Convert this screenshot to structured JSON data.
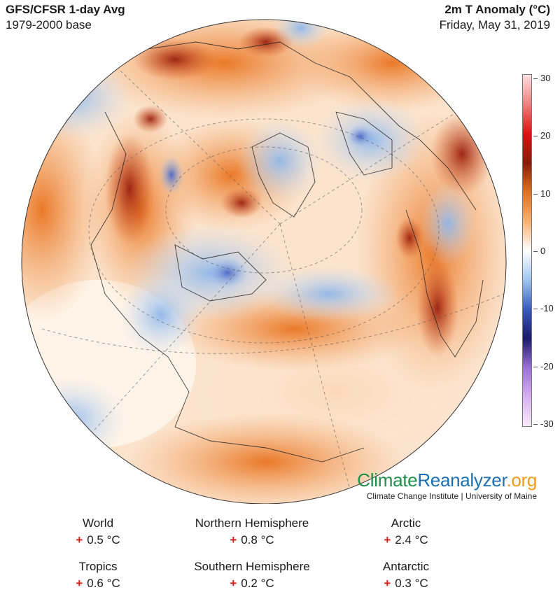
{
  "header": {
    "title": "GFS/CFSR 1-day Avg",
    "subtitle": "1979-2000 base",
    "variable": "2m T Anomaly (°C)",
    "date": "Friday, May 31, 2019"
  },
  "colorbar": {
    "labels": [
      "30",
      "20",
      "10",
      "0",
      "-10",
      "-20",
      "-30"
    ],
    "colors": [
      "#fde0e0",
      "#f08080",
      "#e01010",
      "#8a1a0a",
      "#e07020",
      "#f8b070",
      "#ffffff",
      "#9fc6f0",
      "#3a5bc0",
      "#1a1a6a",
      "#9a70d8",
      "#d8b0f0",
      "#f8eafa"
    ]
  },
  "brand": {
    "part1": "Climate",
    "part2": "Reanalyzer",
    "part3": ".org",
    "institute": "Climate Change Institute | University of Maine"
  },
  "stats": [
    {
      "name": "World",
      "sign": "+",
      "value": "0.5 °C"
    },
    {
      "name": "Northern Hemisphere",
      "sign": "+",
      "value": "0.8 °C"
    },
    {
      "name": "Arctic",
      "sign": "+",
      "value": "2.4 °C"
    },
    {
      "name": "Tropics",
      "sign": "+",
      "value": "0.6 °C"
    },
    {
      "name": "Southern Hemisphere",
      "sign": "+",
      "value": "0.2 °C"
    },
    {
      "name": "Antarctic",
      "sign": "+",
      "value": "0.3 °C"
    }
  ]
}
